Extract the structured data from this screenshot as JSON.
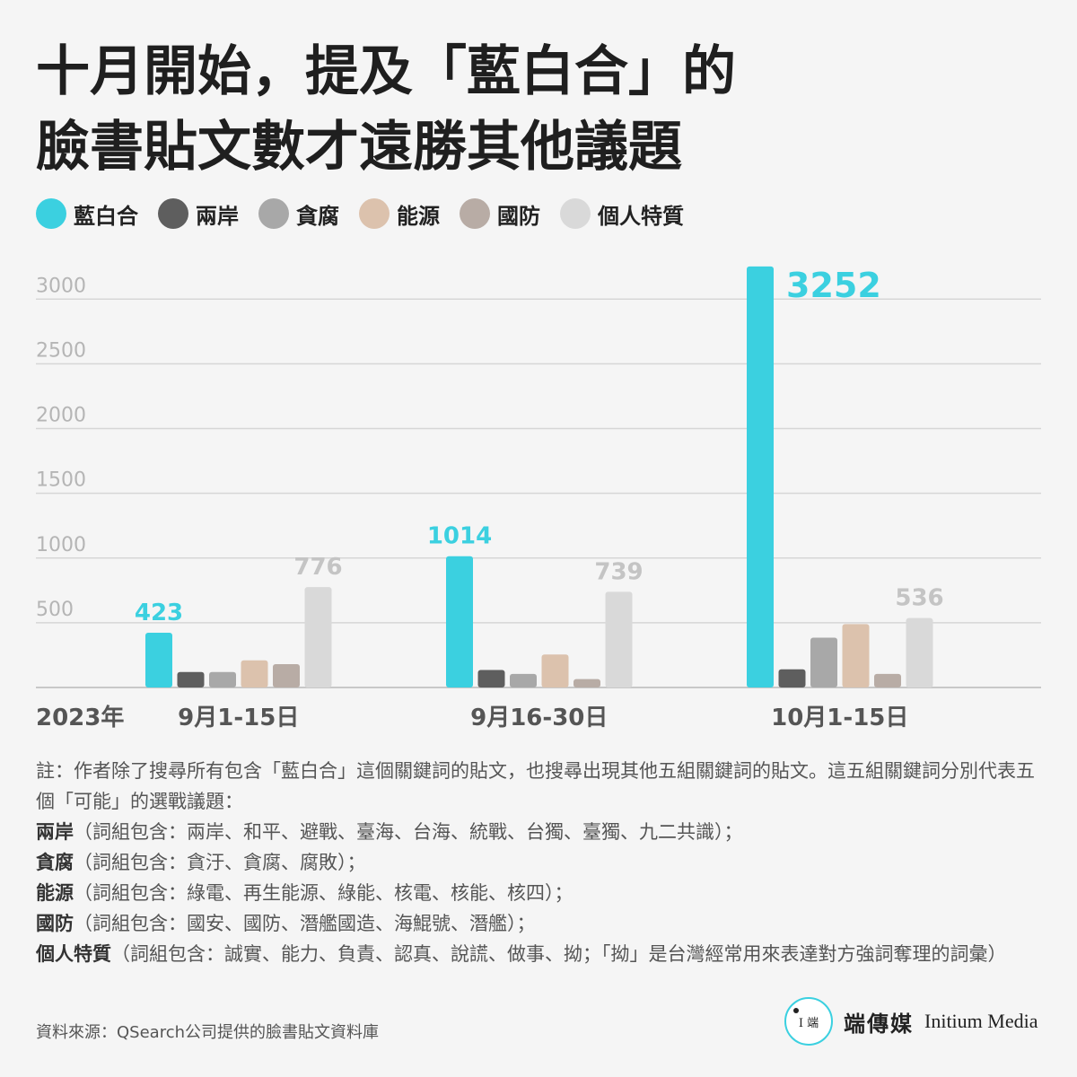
{
  "title_line1": "十月開始，提及「藍白合」的",
  "title_line2": "臉書貼文數才遠勝其他議題",
  "legend": [
    {
      "label": "藍白合",
      "color": "#3bd0e0"
    },
    {
      "label": "兩岸",
      "color": "#5e5e5e"
    },
    {
      "label": "貪腐",
      "color": "#a8a8a8"
    },
    {
      "label": "能源",
      "color": "#dcc2ad"
    },
    {
      "label": "國防",
      "color": "#b8aca5"
    },
    {
      "label": "個人特質",
      "color": "#d9d9d9"
    }
  ],
  "year_label": "2023年",
  "chart_data": {
    "type": "bar",
    "categories": [
      "9月1-15日",
      "9月16-30日",
      "10月1-15日"
    ],
    "series": [
      {
        "name": "藍白合",
        "values": [
          423,
          1014,
          3252
        ]
      },
      {
        "name": "兩岸",
        "values": [
          120,
          135,
          140
        ]
      },
      {
        "name": "貪腐",
        "values": [
          120,
          105,
          385
        ]
      },
      {
        "name": "能源",
        "values": [
          210,
          255,
          490
        ]
      },
      {
        "name": "國防",
        "values": [
          180,
          65,
          105
        ]
      },
      {
        "name": "個人特質",
        "values": [
          776,
          739,
          536
        ]
      }
    ],
    "labeled_series": [
      "藍白合",
      "個人特質"
    ],
    "data_labels": {
      "藍白合": [
        "423",
        "1014",
        "3252"
      ],
      "個人特質": [
        "776",
        "739",
        "536"
      ]
    },
    "y_ticks": [
      500,
      1000,
      1500,
      2000,
      2500,
      3000
    ],
    "ylim": [
      0,
      3300
    ],
    "grid": true,
    "legend_position": "top-left"
  },
  "notes": {
    "intro": "註：作者除了搜尋所有包含「藍白合」這個關鍵詞的貼文，也搜尋出現其他五組關鍵詞的貼文。這五組關鍵詞分別代表五個「可能」的選戰議題：",
    "items": [
      {
        "keyword": "兩岸",
        "text": "（詞組包含：兩岸、和平、避戰、臺海、台海、統戰、台獨、臺獨、九二共識）；"
      },
      {
        "keyword": "貪腐",
        "text": "（詞組包含：貪汙、貪腐、腐敗）；"
      },
      {
        "keyword": "能源",
        "text": "（詞組包含：綠電、再生能源、綠能、核電、核能、核四）；"
      },
      {
        "keyword": "國防",
        "text": "（詞組包含：國安、國防、潛艦國造、海鯤號、潛艦）；"
      },
      {
        "keyword": "個人特質",
        "text": "（詞組包含：誠實、能力、負責、認真、說謊、做事、拗；「拗」是台灣經常用來表達對方強詞奪理的詞彙）"
      }
    ]
  },
  "source": "資料來源：QSearch公司提供的臉書貼文資料庫",
  "logo": {
    "mark": "I 端",
    "name_cn": "端傳媒",
    "name_en": "Initium Media",
    "accent": "#3ad0e0"
  }
}
